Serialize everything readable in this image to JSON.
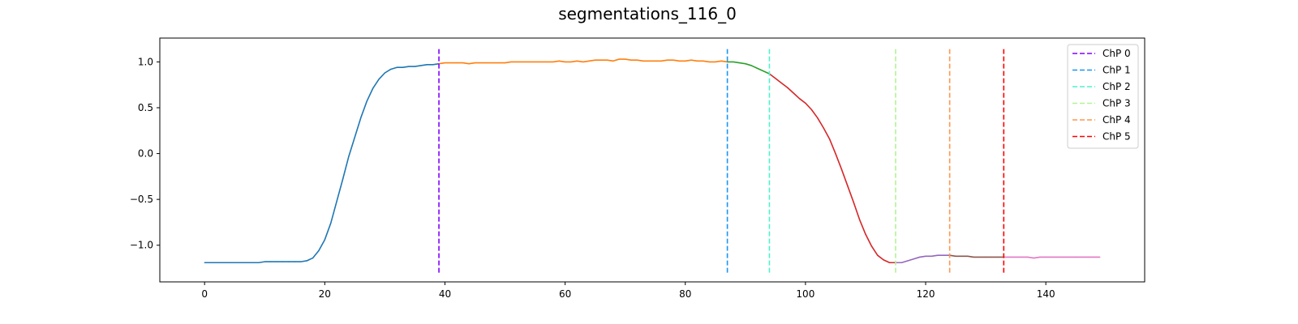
{
  "chart_data": {
    "type": "line",
    "title": "segmentations_116_0",
    "xlabel": "",
    "ylabel": "",
    "xlim": [
      -7.45,
      156.45
    ],
    "ylim": [
      -1.4,
      1.26
    ],
    "xticks": [
      0,
      20,
      40,
      60,
      80,
      100,
      120,
      140
    ],
    "yticks": [
      -1.0,
      -0.5,
      0.0,
      0.5,
      1.0
    ],
    "ytick_labels": [
      "−1.0",
      "−0.5",
      "0.0",
      "0.5",
      "1.0"
    ],
    "grid": false,
    "legend_position": "top-right",
    "series": [
      {
        "color": "#1f77b4",
        "x": [
          0,
          1,
          2,
          3,
          4,
          5,
          6,
          7,
          8,
          9,
          10,
          11,
          12,
          13,
          14,
          15,
          16,
          17,
          18,
          19,
          20,
          21,
          22,
          23,
          24,
          25,
          26,
          27,
          28,
          29,
          30,
          31,
          32,
          33,
          34,
          35,
          36,
          37,
          38,
          39
        ],
        "y": [
          -1.19,
          -1.19,
          -1.19,
          -1.19,
          -1.19,
          -1.19,
          -1.19,
          -1.19,
          -1.19,
          -1.19,
          -1.18,
          -1.18,
          -1.18,
          -1.18,
          -1.18,
          -1.18,
          -1.18,
          -1.17,
          -1.14,
          -1.06,
          -0.94,
          -0.76,
          -0.52,
          -0.28,
          -0.03,
          0.18,
          0.39,
          0.57,
          0.71,
          0.81,
          0.88,
          0.92,
          0.94,
          0.94,
          0.95,
          0.95,
          0.96,
          0.97,
          0.97,
          0.98
        ]
      },
      {
        "color": "#ff7f0e",
        "x": [
          39,
          40,
          41,
          42,
          43,
          44,
          45,
          46,
          47,
          48,
          49,
          50,
          51,
          52,
          53,
          54,
          55,
          56,
          57,
          58,
          59,
          60,
          61,
          62,
          63,
          64,
          65,
          66,
          67,
          68,
          69,
          70,
          71,
          72,
          73,
          74,
          75,
          76,
          77,
          78,
          79,
          80,
          81,
          82,
          83,
          84,
          85,
          86,
          87
        ],
        "y": [
          0.98,
          0.99,
          0.99,
          0.99,
          0.99,
          0.98,
          0.99,
          0.99,
          0.99,
          0.99,
          0.99,
          0.99,
          1.0,
          1.0,
          1.0,
          1.0,
          1.0,
          1.0,
          1.0,
          1.0,
          1.01,
          1.0,
          1.0,
          1.01,
          1.0,
          1.01,
          1.02,
          1.02,
          1.02,
          1.01,
          1.03,
          1.03,
          1.02,
          1.02,
          1.01,
          1.01,
          1.01,
          1.01,
          1.02,
          1.02,
          1.01,
          1.01,
          1.02,
          1.01,
          1.01,
          1.0,
          1.0,
          1.01,
          1.0
        ]
      },
      {
        "color": "#2ca02c",
        "x": [
          87,
          88,
          89,
          90,
          91,
          92,
          93,
          94
        ],
        "y": [
          1.0,
          1.0,
          0.99,
          0.98,
          0.96,
          0.93,
          0.9,
          0.87
        ]
      },
      {
        "color": "#d62728",
        "x": [
          94,
          95,
          96,
          97,
          98,
          99,
          100,
          101,
          102,
          103,
          104,
          105,
          106,
          107,
          108,
          109,
          110,
          111,
          112,
          113,
          114,
          115
        ],
        "y": [
          0.87,
          0.82,
          0.77,
          0.72,
          0.66,
          0.6,
          0.55,
          0.48,
          0.39,
          0.28,
          0.16,
          0.0,
          -0.17,
          -0.35,
          -0.53,
          -0.72,
          -0.88,
          -1.01,
          -1.11,
          -1.16,
          -1.19,
          -1.19
        ]
      },
      {
        "color": "#9467bd",
        "x": [
          115,
          116,
          117,
          118,
          119,
          120,
          121,
          122,
          123,
          124
        ],
        "y": [
          -1.19,
          -1.19,
          -1.17,
          -1.15,
          -1.13,
          -1.12,
          -1.12,
          -1.11,
          -1.11,
          -1.11
        ]
      },
      {
        "color": "#8c564b",
        "x": [
          124,
          125,
          126,
          127,
          128,
          129,
          130,
          131,
          132,
          133
        ],
        "y": [
          -1.11,
          -1.12,
          -1.12,
          -1.12,
          -1.13,
          -1.13,
          -1.13,
          -1.13,
          -1.13,
          -1.13
        ]
      },
      {
        "color": "#e377c2",
        "x": [
          133,
          134,
          135,
          136,
          137,
          138,
          139,
          140,
          141,
          142,
          143,
          144,
          145,
          146,
          147,
          148,
          149
        ],
        "y": [
          -1.13,
          -1.13,
          -1.13,
          -1.13,
          -1.13,
          -1.14,
          -1.13,
          -1.13,
          -1.13,
          -1.13,
          -1.13,
          -1.13,
          -1.13,
          -1.13,
          -1.13,
          -1.13,
          -1.13
        ]
      }
    ],
    "changepoints": [
      {
        "label": "ChP 0",
        "x": 39,
        "color": "#8000ff"
      },
      {
        "label": "ChP 1",
        "x": 87,
        "color": "#1996f3"
      },
      {
        "label": "ChP 2",
        "x": 94,
        "color": "#4df3ce"
      },
      {
        "label": "ChP 3",
        "x": 115,
        "color": "#b2f396"
      },
      {
        "label": "ChP 4",
        "x": 124,
        "color": "#ff964f"
      },
      {
        "label": "ChP 5",
        "x": 133,
        "color": "#ff0000"
      }
    ]
  }
}
